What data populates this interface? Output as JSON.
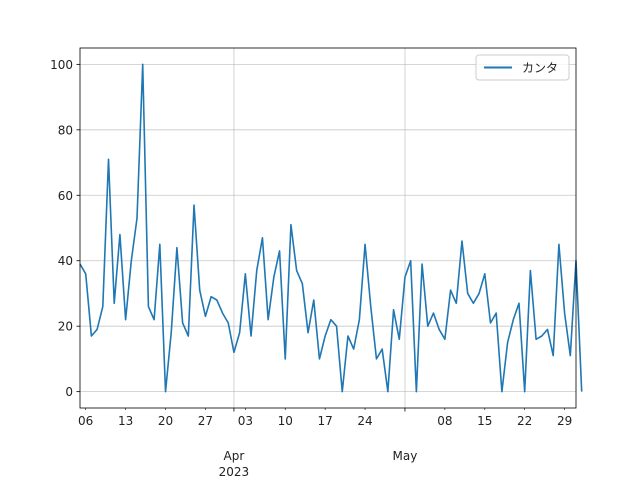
{
  "chart_data": {
    "type": "line",
    "title": "",
    "xlabel": "",
    "ylabel": "",
    "x_start": "2023-03-05",
    "x_end": "2023-05-31",
    "ylim": [
      -5,
      105
    ],
    "y_ticks": [
      0,
      20,
      40,
      60,
      80,
      100
    ],
    "x_ticks": [
      {
        "date": "2023-03-06",
        "label": "06"
      },
      {
        "date": "2023-03-13",
        "label": "13"
      },
      {
        "date": "2023-03-20",
        "label": "20"
      },
      {
        "date": "2023-03-27",
        "label": "27"
      },
      {
        "date": "2023-04-03",
        "label": "03"
      },
      {
        "date": "2023-04-10",
        "label": "10"
      },
      {
        "date": "2023-04-17",
        "label": "17"
      },
      {
        "date": "2023-04-24",
        "label": "24"
      },
      {
        "date": "2023-05-08",
        "label": "08"
      },
      {
        "date": "2023-05-15",
        "label": "15"
      },
      {
        "date": "2023-05-22",
        "label": "22"
      },
      {
        "date": "2023-05-29",
        "label": "29"
      }
    ],
    "major_ticks": [
      {
        "date": "2023-04-01",
        "label": "Apr",
        "sublabel": "2023"
      },
      {
        "date": "2023-05-01",
        "label": "May",
        "sublabel": ""
      }
    ],
    "grid": true,
    "legend_position": "top-right",
    "series": [
      {
        "name": "カンタ",
        "color": "#1f77b4",
        "x_start": "2023-03-05",
        "values": [
          39,
          36,
          17,
          19,
          26,
          71,
          27,
          48,
          22,
          40,
          53,
          100,
          26,
          22,
          45,
          0,
          18,
          44,
          21,
          17,
          57,
          31,
          23,
          29,
          28,
          24,
          21,
          12,
          18,
          36,
          17,
          37,
          47,
          22,
          35,
          43,
          10,
          51,
          37,
          33,
          18,
          28,
          10,
          17,
          22,
          20,
          0,
          17,
          13,
          22,
          45,
          26,
          10,
          13,
          0,
          25,
          16,
          35,
          40,
          0,
          39,
          20,
          24,
          19,
          16,
          31,
          27,
          46,
          30,
          27,
          30,
          36,
          21,
          24,
          0,
          15,
          22,
          27,
          0,
          37,
          16,
          17,
          19,
          11,
          45,
          24,
          11,
          40,
          0
        ]
      }
    ]
  }
}
